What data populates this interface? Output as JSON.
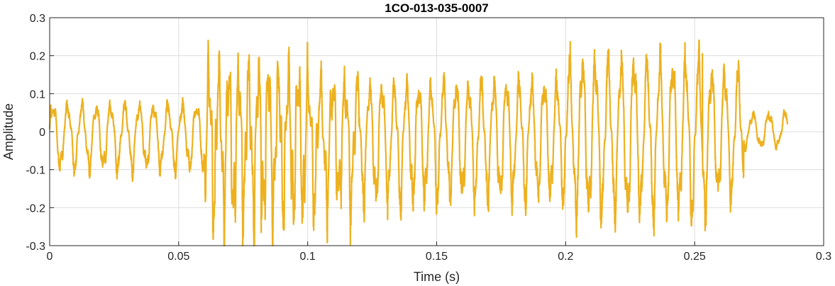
{
  "chart_data": {
    "type": "line",
    "title": "1CO-013-035-0007",
    "xlabel": "Time (s)",
    "ylabel": "Amplitude",
    "xlim": [
      0,
      0.3
    ],
    "ylim": [
      -0.3,
      0.3
    ],
    "xticks": [
      0,
      0.05,
      0.1,
      0.15,
      0.2,
      0.25,
      0.3
    ],
    "xtick_labels": [
      "0",
      "0.05",
      "0.1",
      "0.15",
      "0.2",
      "0.25",
      "0.3"
    ],
    "yticks": [
      -0.3,
      -0.2,
      -0.1,
      0,
      0.1,
      0.2,
      0.3
    ],
    "ytick_labels": [
      "-0.3",
      "-0.2",
      "-0.1",
      "0",
      "0.1",
      "0.2",
      "0.3"
    ],
    "grid": true,
    "line_color": "#EDB120",
    "signal": {
      "t_start": 0,
      "t_end": 0.286,
      "segments": [
        {
          "t0": 0.0,
          "t1": 0.06,
          "freq": 180,
          "amp_pos": 0.07,
          "amp_neg": 0.1
        },
        {
          "t0": 0.06,
          "t1": 0.1,
          "freq": 260,
          "amp_pos": 0.15,
          "amp_neg": 0.22
        },
        {
          "t0": 0.1,
          "t1": 0.15,
          "freq": 210,
          "amp_pos": 0.12,
          "amp_neg": 0.19
        },
        {
          "t0": 0.15,
          "t1": 0.2,
          "freq": 205,
          "amp_pos": 0.13,
          "amp_neg": 0.18
        },
        {
          "t0": 0.2,
          "t1": 0.255,
          "freq": 200,
          "amp_pos": 0.19,
          "amp_neg": 0.22
        },
        {
          "t0": 0.255,
          "t1": 0.269,
          "freq": 195,
          "amp_pos": 0.16,
          "amp_neg": 0.17
        },
        {
          "t0": 0.269,
          "t1": 0.286,
          "freq": 160,
          "amp_pos": 0.05,
          "amp_neg": 0.04
        }
      ],
      "peaks": [
        {
          "t": 0.081,
          "y": 0.19
        },
        {
          "t": 0.082,
          "y": -0.265
        },
        {
          "t": 0.253,
          "y": 0.205
        },
        {
          "t": 0.0005,
          "y": 0.07
        }
      ]
    }
  }
}
